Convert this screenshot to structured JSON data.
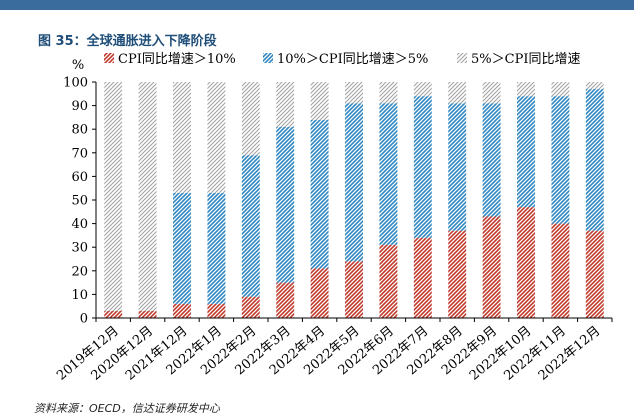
{
  "figure": {
    "title": "图 35：全球通胀进入下降阶段",
    "source": "资料来源：OECD，信达证券研发中心"
  },
  "chart_data": {
    "type": "bar",
    "stacked": true,
    "percent_stacked": true,
    "ylabel": "%",
    "ylim": [
      0,
      100
    ],
    "yticks": [
      0,
      10,
      20,
      30,
      40,
      50,
      60,
      70,
      80,
      90,
      100
    ],
    "grid": false,
    "legend_position": "top",
    "categories": [
      "2019年12月",
      "2020年12月",
      "2021年12月",
      "2022年1月",
      "2022年2月",
      "2022年3月",
      "2022年4月",
      "2022年5月",
      "2022年6月",
      "2022年7月",
      "2022年8月",
      "2022年9月",
      "2022年10月",
      "2022年11月",
      "2022年12月"
    ],
    "series": [
      {
        "name": "CPI同比增速＞10%",
        "color": "#c0392b",
        "values": [
          3,
          3,
          6,
          6,
          9,
          15,
          21,
          24,
          31,
          34,
          37,
          43,
          47,
          40,
          37
        ]
      },
      {
        "name": "10%＞CPI同比增速＞5%",
        "color": "#2e86c1",
        "values": [
          0,
          0,
          47,
          47,
          60,
          66,
          63,
          67,
          60,
          60,
          54,
          48,
          47,
          54,
          60
        ]
      },
      {
        "name": "5%＞CPI同比增速",
        "color": "#a0a0a0",
        "values": [
          97,
          97,
          47,
          47,
          31,
          19,
          16,
          9,
          9,
          6,
          9,
          9,
          6,
          6,
          3
        ]
      }
    ]
  }
}
